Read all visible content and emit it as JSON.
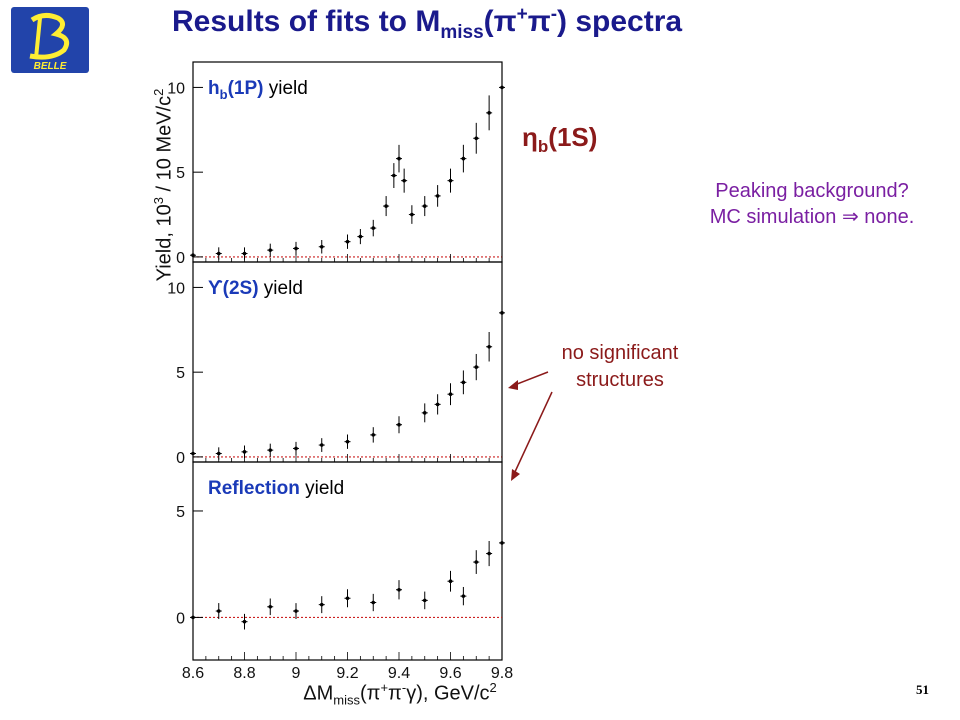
{
  "logo": {
    "text": "BELLE"
  },
  "title": {
    "main": "Results of fits to M",
    "sub": "miss",
    "open": "(",
    "pi": "π",
    "plus": "+",
    "minus": "-",
    "close": ") spectra"
  },
  "annotations": {
    "etab_main": "η",
    "etab_sub": "b",
    "etab_rest": "(1S)",
    "peaking_line1": "Peaking background?",
    "peaking_line2": "MC simulation ⇒ none.",
    "nosig_line1": "no significant",
    "nosig_line2": "structures"
  },
  "page_number": "51",
  "colors": {
    "title": "#1a1a8c",
    "accent_red": "#8b1a1a",
    "purple": "#7a1fa2",
    "label_blue": "#1a3ab8",
    "zero_line": "#cc2222"
  },
  "axes": {
    "ylabel_main": "Yield, 10",
    "ylabel_exp": "3",
    "ylabel_rest": " / 10 MeV/c",
    "ylabel_exp2": "2",
    "xlabel_main": "ΔM",
    "xlabel_sub": "miss",
    "xlabel_mid": "(π",
    "xlabel_plus": "+",
    "xlabel_pi2": "π",
    "xlabel_minus": "-",
    "xlabel_rest": "γ), GeV/c",
    "xlabel_exp": "2"
  },
  "panels": [
    {
      "label_hl": "h",
      "label_hl_sub": "b",
      "label_hl_rest": "(1P)",
      "label_rest": " yield"
    },
    {
      "label_hl": "ϒ(2S)",
      "label_rest": " yield"
    },
    {
      "label_hl": "Reflection",
      "label_rest": " yield"
    }
  ],
  "chart_data": [
    {
      "type": "scatter",
      "title": "hb(1P) yield",
      "xlabel": "ΔMmiss(π+π-γ), GeV/c2",
      "ylabel": "Yield, 10^3 / 10 MeV/c2",
      "xlim": [
        8.6,
        9.8
      ],
      "ylim": [
        -0.3,
        11.5
      ],
      "yticks": [
        0,
        5,
        10
      ],
      "x": [
        8.6,
        8.7,
        8.8,
        8.9,
        9.0,
        9.1,
        9.2,
        9.25,
        9.3,
        9.35,
        9.38,
        9.4,
        9.42,
        9.45,
        9.5,
        9.55,
        9.6,
        9.65,
        9.7,
        9.75,
        9.8
      ],
      "y": [
        0.1,
        0.2,
        0.2,
        0.4,
        0.5,
        0.6,
        0.9,
        1.2,
        1.7,
        3.0,
        4.8,
        5.8,
        4.5,
        2.5,
        3.0,
        3.6,
        4.5,
        5.8,
        7.0,
        8.5,
        10.0
      ]
    },
    {
      "type": "scatter",
      "title": "ϒ(2S) yield",
      "xlim": [
        8.6,
        9.8
      ],
      "ylim": [
        -0.3,
        11.5
      ],
      "yticks": [
        0,
        5,
        10
      ],
      "x": [
        8.6,
        8.7,
        8.8,
        8.9,
        9.0,
        9.1,
        9.2,
        9.3,
        9.4,
        9.5,
        9.55,
        9.6,
        9.65,
        9.7,
        9.75,
        9.8
      ],
      "y": [
        0.2,
        0.2,
        0.3,
        0.4,
        0.5,
        0.7,
        0.9,
        1.3,
        1.9,
        2.6,
        3.1,
        3.7,
        4.4,
        5.3,
        6.5,
        8.5
      ]
    },
    {
      "type": "scatter",
      "title": "Reflection yield",
      "xlim": [
        8.6,
        9.8
      ],
      "ylim": [
        -2.0,
        7.3
      ],
      "yticks": [
        0,
        5
      ],
      "xticks": [
        8.6,
        8.8,
        9,
        9.2,
        9.4,
        9.6,
        9.8
      ],
      "x": [
        8.6,
        8.7,
        8.8,
        8.9,
        9.0,
        9.1,
        9.2,
        9.3,
        9.4,
        9.5,
        9.6,
        9.65,
        9.7,
        9.75,
        9.8
      ],
      "y": [
        0.0,
        0.3,
        -0.2,
        0.5,
        0.3,
        0.6,
        0.9,
        0.7,
        1.3,
        0.8,
        1.7,
        1.0,
        2.6,
        3.0,
        3.5
      ]
    }
  ]
}
